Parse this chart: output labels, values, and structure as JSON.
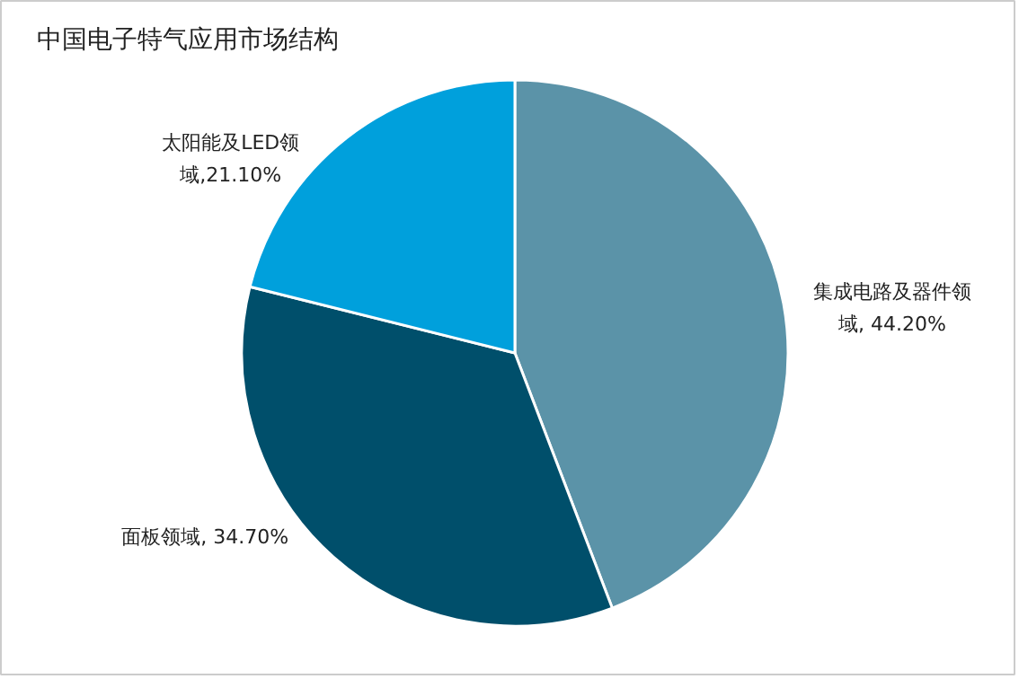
{
  "chart_data": {
    "type": "pie",
    "title": "中国电子特气应用市场结构",
    "categories": [
      "集成电路及器件领域",
      "面板领域",
      "太阳能及LED领域"
    ],
    "values": [
      44.2,
      34.7,
      21.1
    ],
    "colors": [
      "#5b93a8",
      "#004f6b",
      "#00a0dc"
    ],
    "value_labels": [
      "44.20%",
      "34.70%",
      "21.10%"
    ]
  }
}
